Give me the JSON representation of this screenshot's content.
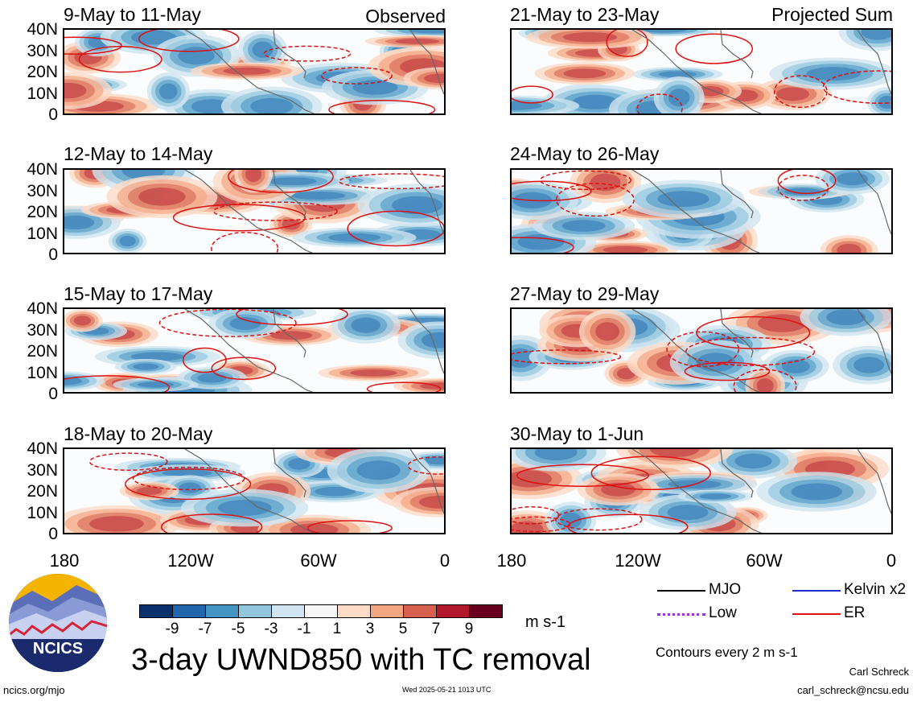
{
  "panels_left": [
    {
      "title": "9-May to 11-May",
      "tag": "Observed"
    },
    {
      "title": "12-May to 14-May",
      "tag": ""
    },
    {
      "title": "15-May to 17-May",
      "tag": ""
    },
    {
      "title": "18-May to 20-May",
      "tag": ""
    }
  ],
  "panels_right": [
    {
      "title": "21-May to 23-May",
      "tag": "Projected Sum"
    },
    {
      "title": "24-May to 26-May",
      "tag": ""
    },
    {
      "title": "27-May to 29-May",
      "tag": ""
    },
    {
      "title": "30-May to 1-Jun",
      "tag": ""
    }
  ],
  "y_ticks": [
    "40N",
    "30N",
    "20N",
    "10N",
    "0"
  ],
  "x_ticks": [
    "180",
    "120W",
    "60W",
    "0"
  ],
  "colorbar": {
    "colors": [
      "#08306b",
      "#2166ac",
      "#4393c3",
      "#92c5de",
      "#d1e5f0",
      "#f7f7f7",
      "#fddbc7",
      "#f4a582",
      "#d6604d",
      "#b2182b",
      "#67001f"
    ],
    "labels": [
      "-9",
      "-7",
      "-5",
      "-3",
      "-1",
      "1",
      "3",
      "5",
      "7",
      "9"
    ],
    "unit": "m s-1"
  },
  "legend": {
    "items": [
      {
        "label": "MJO",
        "color": "#000000",
        "style": "solid"
      },
      {
        "label": "Kelvin x2",
        "color": "#1f2fcc",
        "style": "solid"
      },
      {
        "label": "Low",
        "color": "#9933cc",
        "style": "dotted"
      },
      {
        "label": "ER",
        "color": "#dd1111",
        "style": "solid"
      }
    ],
    "contour_note": "Contours every 2 m s-1"
  },
  "logo_text": "NCICS",
  "main_title": "3-day UWND850 with TC removal",
  "footer": {
    "left": "ncics.org/mjo",
    "center": "Wed 2025-05-21 1013 UTC",
    "author": "Carl Schreck",
    "email": "carl_schreck@ncsu.edu"
  },
  "chart_data": {
    "type": "heatmap",
    "variable": "850-hPa zonal wind anomaly (3-day mean, TC removed)",
    "x_range": [
      "180",
      "0"
    ],
    "y_range": [
      "0",
      "40N"
    ],
    "color_levels": [
      -9,
      -7,
      -5,
      -3,
      -1,
      1,
      3,
      5,
      7,
      9
    ],
    "units": "m s-1",
    "panels": [
      "9-May to 11-May",
      "12-May to 14-May",
      "15-May to 17-May",
      "18-May to 20-May",
      "21-May to 23-May",
      "24-May to 26-May",
      "27-May to 29-May",
      "30-May to 1-Jun"
    ]
  }
}
